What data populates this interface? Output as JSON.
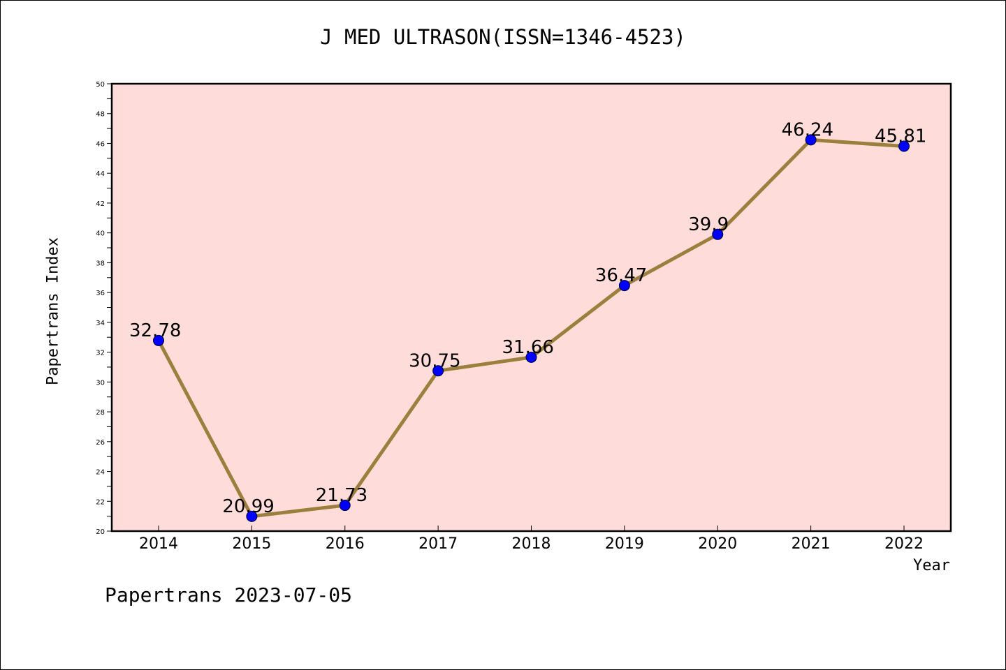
{
  "title": "J MED ULTRASON(ISSN=1346-4523)",
  "footer": "Papertrans 2023-07-05",
  "colors": {
    "plot_background": "#fddcd9",
    "line": "#9c7f3c",
    "marker": "#0000ff",
    "axis": "#000000"
  },
  "chart_data": {
    "type": "line",
    "title": "J MED ULTRASON(ISSN=1346-4523)",
    "xlabel": "Year",
    "ylabel": "Papertrans Index",
    "categories": [
      "2014",
      "2015",
      "2016",
      "2017",
      "2018",
      "2019",
      "2020",
      "2021",
      "2022"
    ],
    "values": [
      32.78,
      20.99,
      21.73,
      30.75,
      31.66,
      36.47,
      39.9,
      46.24,
      45.81
    ],
    "data_labels": [
      "32.78",
      "20.99",
      "21.73",
      "30.75",
      "31.66",
      "36.47",
      "39.9",
      "46.24",
      "45.81"
    ],
    "ylim": [
      20,
      50
    ],
    "y_tick_labels": [
      "20",
      "22",
      "24",
      "26",
      "28",
      "30",
      "32",
      "34",
      "36",
      "38",
      "40",
      "42",
      "44",
      "46",
      "48",
      "50"
    ],
    "grid": false,
    "legend": "none"
  }
}
